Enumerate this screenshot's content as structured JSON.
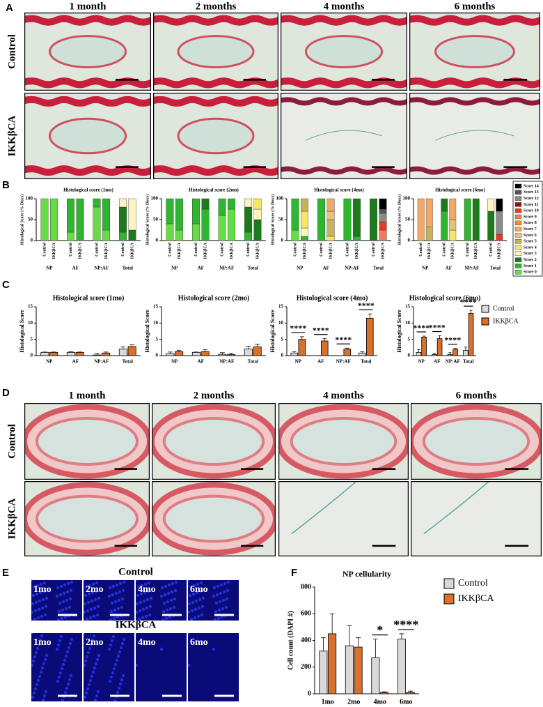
{
  "panel_labels": {
    "a": "A",
    "b": "B",
    "c": "C",
    "d": "D",
    "e": "E",
    "f": "F"
  },
  "panel_a": {
    "columns": [
      "1 month",
      "2 months",
      "4 months",
      "6 months"
    ],
    "rows": [
      "Control",
      "IKKβCA"
    ]
  },
  "panel_d": {
    "columns": [
      "1 month",
      "2 months",
      "4 months",
      "6 months"
    ],
    "rows": [
      "Control",
      "IKKβCA"
    ]
  },
  "panel_e": {
    "control": {
      "title": "Control",
      "labels": [
        "1mo",
        "2mo",
        "4mo",
        "6mo"
      ]
    },
    "ikk": {
      "title": "IKKβCA",
      "labels": [
        "1mo",
        "2mo",
        "4mo",
        "6mo"
      ]
    }
  },
  "score_legend": [
    {
      "name": "Score 14",
      "color": "#000000"
    },
    {
      "name": "Score 13",
      "color": "#555555"
    },
    {
      "name": "Score 12",
      "color": "#8a8a8a"
    },
    {
      "name": "Score 11",
      "color": "#9e1010"
    },
    {
      "name": "Score 10",
      "color": "#e63a1e"
    },
    {
      "name": "Score 9",
      "color": "#f07a62"
    },
    {
      "name": "Score 8",
      "color": "#f08c30"
    },
    {
      "name": "Score 7",
      "color": "#f4a866"
    },
    {
      "name": "Score 6",
      "color": "#e8c27a"
    },
    {
      "name": "Score 5",
      "color": "#c9b25a"
    },
    {
      "name": "Score 4",
      "color": "#f5e663"
    },
    {
      "name": "Score 3",
      "color": "#fff4c0"
    },
    {
      "name": "Score 2",
      "color": "#1c7a1c"
    },
    {
      "name": "Score 1",
      "color": "#2fb52f"
    },
    {
      "name": "Score 0",
      "color": "#66dd44"
    }
  ],
  "chart_data": [
    {
      "type": "stacked_bar",
      "title": "Histological score (1mo)",
      "ylabel": "Histological Score (% Discs)",
      "categories": [
        "Control",
        "IKKβCA",
        "Control",
        "IKKβCA",
        "Control",
        "IKKβCA",
        "Control",
        "IKKβCA"
      ],
      "groups": [
        "NP",
        "AF",
        "NP:AF",
        "Total"
      ],
      "ylim": [
        0,
        100
      ],
      "yticks": [
        0,
        50,
        100
      ],
      "series": [
        {
          "name": "Score 0",
          "color": "#66dd44",
          "values": [
            100,
            100,
            20,
            0,
            80,
            25,
            0,
            0
          ]
        },
        {
          "name": "Score 1",
          "color": "#2fb52f",
          "values": [
            0,
            0,
            80,
            100,
            20,
            75,
            20,
            0
          ]
        },
        {
          "name": "Score 2",
          "color": "#1c7a1c",
          "values": [
            0,
            0,
            0,
            0,
            0,
            0,
            60,
            25
          ]
        },
        {
          "name": "Score 3",
          "color": "#fff4c0",
          "values": [
            0,
            0,
            0,
            0,
            0,
            0,
            20,
            75
          ]
        }
      ]
    },
    {
      "type": "stacked_bar",
      "title": "Histological score (2mo)",
      "ylabel": "Histological Score (% Discs)",
      "categories": [
        "Control",
        "IKKβCA",
        "Control",
        "IKKβCA",
        "Control",
        "IKKβCA",
        "Control",
        "IKKβCA"
      ],
      "groups": [
        "NP",
        "AF",
        "NP:AF",
        "Total"
      ],
      "ylim": [
        0,
        100
      ],
      "yticks": [
        0,
        50,
        100
      ],
      "series": [
        {
          "name": "Score 0",
          "color": "#66dd44",
          "values": [
            40,
            25,
            40,
            0,
            60,
            75,
            0,
            0
          ]
        },
        {
          "name": "Score 1",
          "color": "#2fb52f",
          "values": [
            60,
            75,
            60,
            75,
            40,
            25,
            20,
            0
          ]
        },
        {
          "name": "Score 2",
          "color": "#1c7a1c",
          "values": [
            0,
            0,
            0,
            25,
            0,
            0,
            60,
            50
          ]
        },
        {
          "name": "Score 3",
          "color": "#fff4c0",
          "values": [
            0,
            0,
            0,
            0,
            0,
            0,
            20,
            25
          ]
        },
        {
          "name": "Score 4",
          "color": "#f5e663",
          "values": [
            0,
            0,
            0,
            0,
            0,
            0,
            0,
            25
          ]
        }
      ]
    },
    {
      "type": "stacked_bar",
      "title": "Histological score (4mo)",
      "ylabel": "Histological Score (% Discs)",
      "categories": [
        "Control",
        "IKKβCA",
        "Control",
        "IKKβCA",
        "Control",
        "IKKβCA",
        "Control",
        "IKKβCA"
      ],
      "groups": [
        "NP",
        "AF",
        "NP:AF",
        "Total"
      ],
      "ylim": [
        0,
        100
      ],
      "yticks": [
        0,
        50,
        100
      ],
      "series": [
        {
          "name": "Score 0",
          "color": "#66dd44",
          "values": [
            25,
            0,
            0,
            0,
            0,
            0,
            0,
            0
          ]
        },
        {
          "name": "Score 1",
          "color": "#2fb52f",
          "values": [
            75,
            10,
            100,
            0,
            100,
            10,
            0,
            0
          ]
        },
        {
          "name": "Score 2",
          "color": "#1c7a1c",
          "values": [
            0,
            0,
            0,
            0,
            0,
            90,
            100,
            0
          ]
        },
        {
          "name": "Score 3",
          "color": "#fff4c0",
          "values": [
            0,
            20,
            0,
            0,
            0,
            0,
            0,
            0
          ]
        },
        {
          "name": "Score 4",
          "color": "#f5e663",
          "values": [
            0,
            40,
            0,
            10,
            0,
            0,
            0,
            0
          ]
        },
        {
          "name": "Score 5",
          "color": "#c9b25a",
          "values": [
            0,
            30,
            0,
            40,
            0,
            0,
            0,
            0
          ]
        },
        {
          "name": "Score 6",
          "color": "#e8c27a",
          "values": [
            0,
            0,
            0,
            20,
            0,
            0,
            0,
            0
          ]
        },
        {
          "name": "Score 7",
          "color": "#f4a866",
          "values": [
            0,
            0,
            0,
            30,
            0,
            0,
            0,
            0
          ]
        },
        {
          "name": "Score 9",
          "color": "#f07a62",
          "values": [
            0,
            0,
            0,
            0,
            0,
            0,
            0,
            25
          ]
        },
        {
          "name": "Score 10",
          "color": "#e63a1e",
          "values": [
            0,
            0,
            0,
            0,
            0,
            0,
            0,
            20
          ]
        },
        {
          "name": "Score 12",
          "color": "#8a8a8a",
          "values": [
            0,
            0,
            0,
            0,
            0,
            0,
            0,
            20
          ]
        },
        {
          "name": "Score 13",
          "color": "#555555",
          "values": [
            0,
            0,
            0,
            0,
            0,
            0,
            0,
            10
          ]
        },
        {
          "name": "Score 14",
          "color": "#000000",
          "values": [
            0,
            0,
            0,
            0,
            0,
            0,
            0,
            25
          ]
        }
      ]
    },
    {
      "type": "stacked_bar",
      "title": "Histological score (6mo)",
      "ylabel": "Histological Score (% Discs)",
      "categories": [
        "Control",
        "IKKβCA",
        "Control",
        "IKKβCA",
        "Control",
        "IKKβCA",
        "Control",
        "IKKβCA"
      ],
      "groups": [
        "NP",
        "AF",
        "NP:AF",
        "Total"
      ],
      "ylim": [
        0,
        100
      ],
      "yticks": [
        0,
        50,
        100
      ],
      "series": [
        {
          "name": "Score 1",
          "color": "#2fb52f",
          "values": [
            0,
            0,
            70,
            0,
            100,
            0,
            0,
            0
          ]
        },
        {
          "name": "Score 2",
          "color": "#1c7a1c",
          "values": [
            0,
            0,
            30,
            0,
            0,
            100,
            70,
            0
          ]
        },
        {
          "name": "Score 3",
          "color": "#fff4c0",
          "values": [
            0,
            0,
            0,
            0,
            0,
            0,
            30,
            0
          ]
        },
        {
          "name": "Score 4",
          "color": "#f5e663",
          "values": [
            0,
            0,
            0,
            25,
            0,
            0,
            0,
            0
          ]
        },
        {
          "name": "Score 5",
          "color": "#c9b25a",
          "values": [
            0,
            33,
            0,
            0,
            0,
            0,
            0,
            0
          ]
        },
        {
          "name": "Score 6",
          "color": "#e8c27a",
          "values": [
            0,
            0,
            0,
            25,
            0,
            0,
            0,
            0
          ]
        },
        {
          "name": "Score 7",
          "color": "#f4a866",
          "values": [
            100,
            67,
            0,
            50,
            0,
            0,
            0,
            0
          ]
        },
        {
          "name": "Score 10",
          "color": "#e63a1e",
          "values": [
            0,
            0,
            0,
            0,
            0,
            0,
            0,
            15
          ]
        },
        {
          "name": "Score 12",
          "color": "#8a8a8a",
          "values": [
            0,
            0,
            0,
            0,
            0,
            0,
            0,
            55
          ]
        },
        {
          "name": "Score 14",
          "color": "#000000",
          "values": [
            0,
            0,
            0,
            0,
            0,
            0,
            0,
            30
          ]
        }
      ]
    },
    {
      "type": "bar",
      "title": "Histological score (1mo)",
      "ylabel": "Histological Score",
      "categories": [
        "NP",
        "AF",
        "NP:AF",
        "Total"
      ],
      "ylim": [
        0,
        15
      ],
      "yticks": [
        0,
        5,
        10,
        15
      ],
      "series": [
        {
          "name": "Control",
          "color": "#d9d9d9",
          "values": [
            1,
            1,
            0.2,
            2
          ],
          "errors": [
            0.1,
            0.2,
            0.4,
            0.7
          ]
        },
        {
          "name": "IKKβCA",
          "color": "#d9712b",
          "values": [
            1,
            1,
            0.8,
            2.8
          ],
          "errors": [
            0.1,
            0.1,
            0.3,
            0.5
          ]
        }
      ]
    },
    {
      "type": "bar",
      "title": "Histological score (2mo)",
      "ylabel": "Histological Score",
      "categories": [
        "NP",
        "AF",
        "NP:AF",
        "Total"
      ],
      "ylim": [
        0,
        15
      ],
      "yticks": [
        0,
        5,
        10,
        15
      ],
      "series": [
        {
          "name": "Control",
          "color": "#d9d9d9",
          "values": [
            0.6,
            1,
            0.4,
            2
          ],
          "errors": [
            0.5,
            0.1,
            0.5,
            0.8
          ]
        },
        {
          "name": "IKKβCA",
          "color": "#d9712b",
          "values": [
            1.2,
            1.2,
            0.3,
            2.7
          ],
          "errors": [
            0.4,
            0.6,
            0.4,
            0.8
          ]
        }
      ]
    },
    {
      "type": "bar",
      "title": "Histological score (4mo)",
      "ylabel": "Histological Score",
      "categories": [
        "NP",
        "AF",
        "NP:AF",
        "Total"
      ],
      "ylim": [
        0,
        15
      ],
      "yticks": [
        0,
        5,
        10,
        15
      ],
      "annotations": [
        "****",
        "****",
        "****",
        "****"
      ],
      "series": [
        {
          "name": "Control",
          "color": "#d9d9d9",
          "values": [
            0.8,
            0,
            0,
            0.8
          ],
          "errors": [
            0.4,
            0,
            0,
            0.4
          ]
        },
        {
          "name": "IKKβCA",
          "color": "#d9712b",
          "values": [
            5,
            4.5,
            2,
            11.5
          ],
          "errors": [
            0.8,
            0.7,
            0.3,
            1.3
          ]
        }
      ]
    },
    {
      "type": "bar",
      "title": "Histological score (6mo)",
      "ylabel": "Histological Score",
      "categories": [
        "NP",
        "AF",
        "NP:AF",
        "Total"
      ],
      "ylim": [
        0,
        15
      ],
      "yticks": [
        0,
        5,
        10,
        15
      ],
      "annotations": [
        "****",
        "****",
        "****",
        "****"
      ],
      "legend": true,
      "series": [
        {
          "name": "Control",
          "color": "#d9d9d9",
          "values": [
            1,
            0.3,
            0.3,
            1.6
          ],
          "errors": [
            0.8,
            0.4,
            0.6,
            1
          ]
        },
        {
          "name": "IKKβCA",
          "color": "#d9712b",
          "values": [
            5.7,
            5.2,
            2,
            13
          ],
          "errors": [
            0.3,
            0.9,
            0.2,
            0.9
          ]
        }
      ]
    },
    {
      "type": "bar",
      "title": "NP cellularity",
      "ylabel": "Cell count (DAPI #)",
      "categories": [
        "1mo",
        "2mo",
        "4mo",
        "6mo"
      ],
      "ylim": [
        0,
        800
      ],
      "yticks": [
        0,
        200,
        400,
        600,
        800
      ],
      "annotations": [
        null,
        null,
        "*",
        "****"
      ],
      "legend": true,
      "series": [
        {
          "name": "Control",
          "color": "#d9d9d9",
          "values": [
            320,
            360,
            270,
            410
          ],
          "errors": [
            100,
            150,
            140,
            40
          ]
        },
        {
          "name": "IKKβCA",
          "color": "#d9712b",
          "values": [
            450,
            350,
            10,
            10
          ],
          "errors": [
            150,
            70,
            5,
            10
          ]
        }
      ]
    }
  ]
}
